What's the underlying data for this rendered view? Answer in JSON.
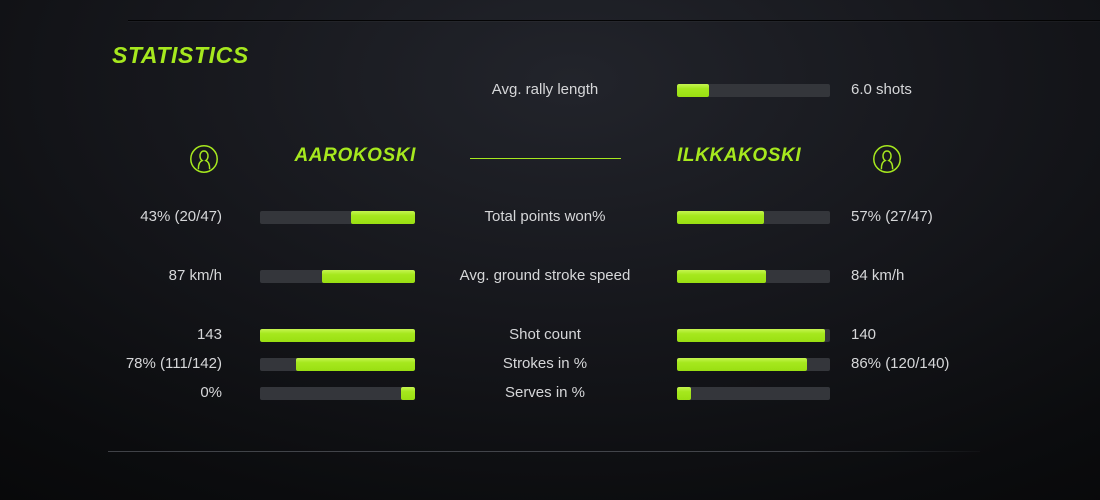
{
  "accent_color": "#a6e81e",
  "title": "STATISTICS",
  "rally": {
    "label": "Avg. rally length",
    "value": "6.0 shots",
    "fill_pct": 21
  },
  "players": {
    "left": {
      "name": "AAROKOSKI"
    },
    "right": {
      "name": "ILKKAKOSKI"
    }
  },
  "chart_data": {
    "type": "bar",
    "title": "STATISTICS",
    "categories": [
      "Total points won%",
      "Avg. ground stroke speed",
      "Shot count",
      "Strokes in %",
      "Serves in %"
    ],
    "series": [
      {
        "name": "AAROKOSKI",
        "values": [
          "43% (20/47)",
          "87 km/h",
          "143",
          "78% (111/142)",
          "0%"
        ]
      },
      {
        "name": "ILKKAKOSKI",
        "values": [
          "57% (27/47)",
          "84 km/h",
          "140",
          "86% (120/140)",
          ""
        ]
      }
    ],
    "extra": {
      "avg_rally_length": "6.0 shots"
    }
  },
  "stats": {
    "rows": [
      {
        "label": "Total points won%",
        "left": {
          "value": "43% (20/47)",
          "fill_pct": 41
        },
        "right": {
          "value": "57% (27/47)",
          "fill_pct": 57
        }
      },
      {
        "label": "Avg. ground stroke speed",
        "left": {
          "value": "87 km/h",
          "fill_pct": 60
        },
        "right": {
          "value": "84 km/h",
          "fill_pct": 58
        }
      },
      {
        "label": "Shot count",
        "left": {
          "value": "143",
          "fill_pct": 100
        },
        "right": {
          "value": "140",
          "fill_pct": 97
        }
      },
      {
        "label": "Strokes in %",
        "left": {
          "value": "78% (111/142)",
          "fill_pct": 77
        },
        "right": {
          "value": "86% (120/140)",
          "fill_pct": 85
        }
      },
      {
        "label": "Serves in %",
        "left": {
          "value": "0%",
          "fill_pct": 9
        },
        "right": {
          "value": "",
          "fill_pct": 9
        }
      }
    ]
  }
}
